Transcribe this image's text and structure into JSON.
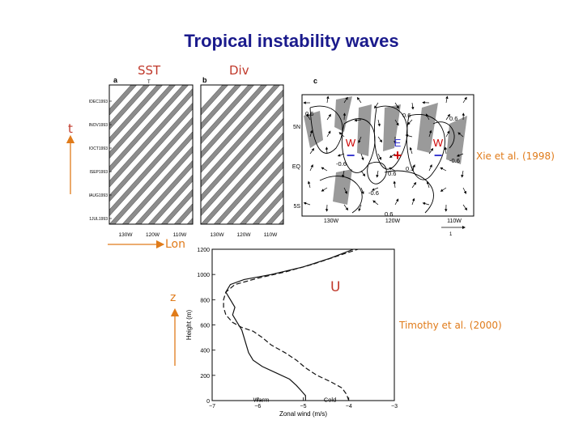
{
  "slide": {
    "title": "Tropical instability waves",
    "labels": {
      "sst": "SST",
      "div": "Div",
      "t_axis": "t",
      "lon_axis": "Lon",
      "z_axis": "z",
      "u": "U"
    },
    "citations": {
      "xie": "Xie et al. (1998)",
      "timothy": "Timothy et al. (2000)"
    }
  },
  "panels": {
    "a": {
      "letter": "a",
      "top_marker": "T",
      "dates": [
        "IDEC1993",
        "INOV1993",
        "IOCT1993",
        "ISEP1993",
        "IAUG1993",
        "1JUL1993"
      ],
      "lon_ticks": [
        "130W",
        "120W",
        "110W"
      ]
    },
    "b": {
      "letter": "b",
      "lon_ticks": [
        "130W",
        "120W",
        "110W"
      ]
    },
    "c": {
      "letter": "c",
      "lat_ticks": [
        "5N",
        "EQ",
        "5S"
      ],
      "lon_ticks": [
        "130W",
        "120W",
        "110W"
      ],
      "contour_labels": [
        "0.6",
        "-0.6",
        "0.6",
        "-0.6",
        "0.6",
        "-0.6",
        "0.6",
        "0.3",
        "0.6"
      ],
      "markers": [
        {
          "letter": "W",
          "sign": "−",
          "color": "#cc0000",
          "sign_color": "#3a3ad0"
        },
        {
          "letter": "E",
          "sign": "+",
          "color": "#3a3ad0",
          "sign_color": "#cc0000"
        },
        {
          "letter": "W",
          "sign": "−",
          "color": "#cc0000",
          "sign_color": "#3a3ad0"
        }
      ],
      "vector_scale": "1"
    }
  },
  "chart_data": {
    "type": "line",
    "xlabel": "Zonal wind (m/s)",
    "ylabel": "Height (m)",
    "xlim": [
      -7,
      -3
    ],
    "ylim": [
      0,
      1200
    ],
    "x_ticks": [
      "−7",
      "−6",
      "−5",
      "−4",
      "−3"
    ],
    "y_ticks": [
      "0",
      "200",
      "400",
      "600",
      "800",
      "1000",
      "1200"
    ],
    "series": [
      {
        "name": "Warm",
        "points": [
          [
            -4.95,
            0
          ],
          [
            -4.95,
            40
          ],
          [
            -5.05,
            80
          ],
          [
            -5.15,
            120
          ],
          [
            -5.3,
            170
          ],
          [
            -5.6,
            220
          ],
          [
            -5.9,
            270
          ],
          [
            -6.1,
            320
          ],
          [
            -6.2,
            380
          ],
          [
            -6.25,
            440
          ],
          [
            -6.3,
            500
          ],
          [
            -6.35,
            560
          ],
          [
            -6.45,
            620
          ],
          [
            -6.55,
            680
          ],
          [
            -6.5,
            740
          ],
          [
            -6.6,
            800
          ],
          [
            -6.7,
            860
          ],
          [
            -6.6,
            920
          ],
          [
            -6.3,
            960
          ],
          [
            -5.7,
            1000
          ],
          [
            -5.0,
            1060
          ],
          [
            -4.4,
            1130
          ],
          [
            -3.9,
            1200
          ]
        ]
      },
      {
        "name": "Cold",
        "points": [
          [
            -4.0,
            0
          ],
          [
            -4.05,
            50
          ],
          [
            -4.15,
            100
          ],
          [
            -4.4,
            150
          ],
          [
            -4.7,
            200
          ],
          [
            -4.95,
            260
          ],
          [
            -5.15,
            320
          ],
          [
            -5.4,
            380
          ],
          [
            -5.7,
            440
          ],
          [
            -5.9,
            500
          ],
          [
            -6.1,
            550
          ],
          [
            -6.35,
            580
          ],
          [
            -6.55,
            620
          ],
          [
            -6.7,
            680
          ],
          [
            -6.75,
            740
          ],
          [
            -6.75,
            800
          ],
          [
            -6.7,
            860
          ],
          [
            -6.5,
            920
          ],
          [
            -6.0,
            970
          ],
          [
            -5.4,
            1020
          ],
          [
            -4.8,
            1080
          ],
          [
            -4.3,
            1140
          ],
          [
            -3.8,
            1200
          ]
        ]
      }
    ],
    "annotations": [
      {
        "text": "Warm",
        "x": -6.1,
        "y": 150
      },
      {
        "text": "Cold",
        "x": -4.55,
        "y": 150
      }
    ]
  }
}
